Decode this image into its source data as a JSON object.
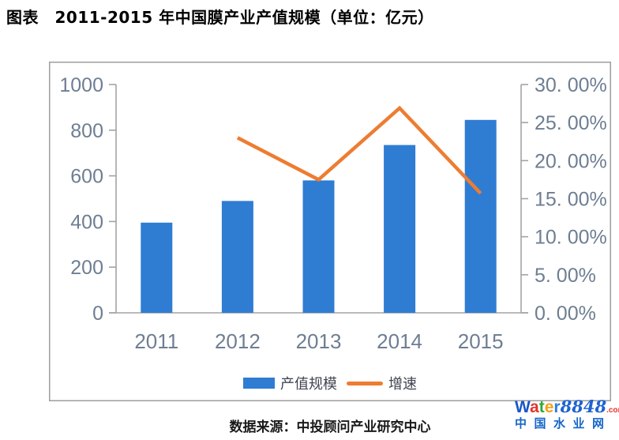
{
  "title": "图表　2011-2015 年中国膜产业产值规模（单位：亿元）",
  "source_caption": "数据来源：中投顾问产业研究中心",
  "colors": {
    "bar": "#2F7CD3",
    "line": "#ED7D31",
    "axis": "#A3A3A3",
    "frame_border": "#9E9E9E",
    "tick_label": "#6E7E92",
    "legend_text": "#3F4450",
    "title_text": "#000000"
  },
  "legend": {
    "items": [
      {
        "label": "产值规模",
        "marker": "bar",
        "color": "#2F7CD3"
      },
      {
        "label": "增速",
        "marker": "line",
        "color": "#ED7D31"
      }
    ]
  },
  "chart_data": {
    "type": "combo (bar + line)",
    "title": "2011-2015 年中国膜产业产值规模（单位：亿元）",
    "categories": [
      "2011",
      "2012",
      "2013",
      "2014",
      "2015"
    ],
    "series": [
      {
        "name": "产值规模",
        "type": "bar",
        "axis": "left",
        "unit": "亿元",
        "values": [
          395,
          490,
          580,
          735,
          845
        ]
      },
      {
        "name": "增速",
        "type": "line",
        "axis": "right",
        "unit": "%",
        "values": [
          null,
          23.0,
          17.5,
          26.9,
          15.7
        ]
      }
    ],
    "left_axis": {
      "min": 0,
      "max": 1000,
      "step": 200,
      "ticks": [
        "0",
        "200",
        "400",
        "600",
        "800",
        "1000"
      ]
    },
    "right_axis": {
      "min": 0,
      "max": 30,
      "step": 5,
      "ticks": [
        "0. 00%",
        "5. 00%",
        "10. 00%",
        "15. 00%",
        "20. 00%",
        "25. 00%",
        "30. 00%"
      ]
    },
    "grid": false,
    "legend_position": "bottom"
  },
  "watermark": {
    "letters": [
      {
        "ch": "W",
        "color": "#1857C8"
      },
      {
        "ch": "a",
        "color": "#E3342E"
      },
      {
        "ch": "t",
        "color": "#2EA83B"
      },
      {
        "ch": "e",
        "color": "#F6A01A"
      },
      {
        "ch": "r",
        "color": "#2B7DE0"
      }
    ],
    "number": "8848",
    "number_color": "#1F63CF",
    "tld": ".com",
    "tld_color": "#E3342E",
    "line2": "中国水业网",
    "line2_color": "#1566C8"
  }
}
